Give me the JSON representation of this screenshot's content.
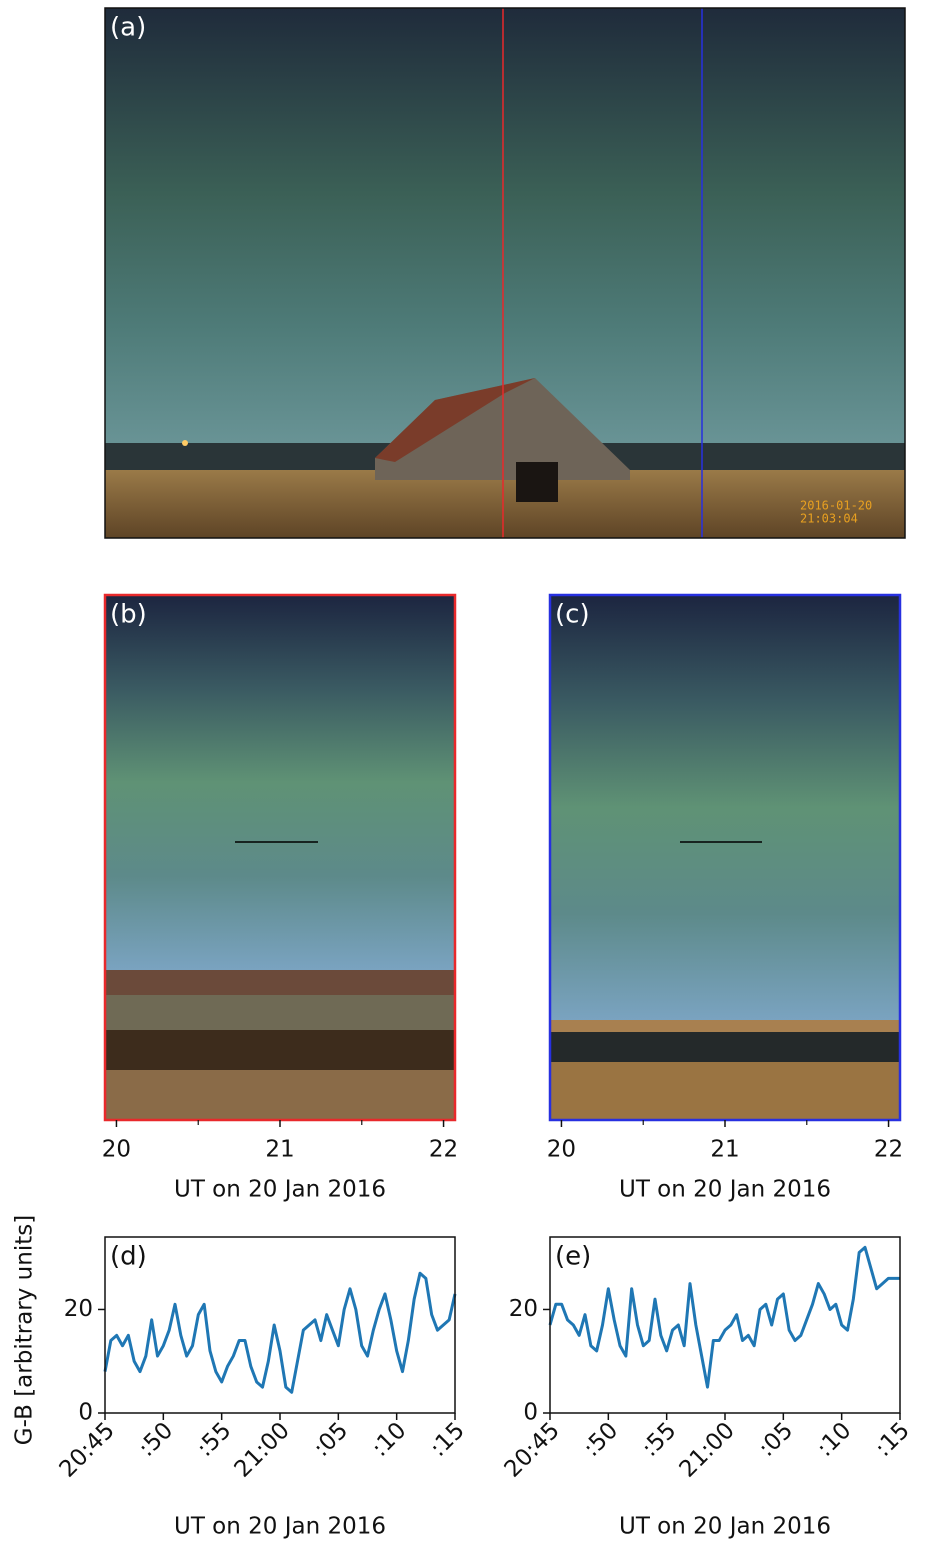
{
  "chart_data": [
    {
      "type": "image",
      "label": "(a)",
      "timestamp": [
        "2016-01-20",
        "21:03:04"
      ]
    },
    {
      "type": "keogram",
      "label": "(b)",
      "xlabel": "UT on 20 Jan 2016",
      "xlim": [
        19.93,
        22.07
      ],
      "xticks": [
        20,
        21,
        22
      ],
      "minor_xticks": [
        20.5,
        21.5
      ]
    },
    {
      "type": "keogram",
      "label": "(c)",
      "xlabel": "UT on 20 Jan 2016",
      "xlim": [
        19.93,
        22.07
      ],
      "xticks": [
        20,
        21,
        22
      ],
      "minor_xticks": [
        20.5,
        21.5
      ]
    },
    {
      "type": "line",
      "label": "(d)",
      "xlabel": "UT on 20 Jan 2016",
      "ylabel": "G-B [arbitrary units]",
      "xlim": [
        45,
        75
      ],
      "xticks": [
        {
          "value": 45,
          "label": "20:45"
        },
        {
          "value": 50,
          "label": ":50"
        },
        {
          "value": 55,
          "label": ":55"
        },
        {
          "value": 60,
          "label": "21:00"
        },
        {
          "value": 65,
          "label": ":05"
        },
        {
          "value": 70,
          "label": ":10"
        },
        {
          "value": 75,
          "label": ":15"
        }
      ],
      "ylim": [
        0,
        34
      ],
      "yticks": [
        0,
        20
      ],
      "x": [
        45,
        45.5,
        46,
        46.5,
        47,
        47.5,
        48,
        48.5,
        49,
        49.5,
        50,
        50.5,
        51,
        51.5,
        52,
        52.5,
        53,
        53.5,
        54,
        54.5,
        55,
        55.5,
        56,
        56.5,
        57,
        57.5,
        58,
        58.5,
        59,
        59.5,
        60,
        60.5,
        61,
        61.5,
        62,
        62.5,
        63,
        63.5,
        64,
        64.5,
        65,
        65.5,
        66,
        66.5,
        67,
        67.5,
        68,
        68.5,
        69,
        69.5,
        70,
        70.5,
        71,
        71.5,
        72,
        72.5,
        73,
        73.5,
        74,
        74.5,
        75
      ],
      "series": [
        {
          "color": "#1f77b4",
          "values": [
            8,
            14,
            15,
            13,
            15,
            10,
            8,
            11,
            18,
            11,
            13,
            16,
            21,
            15,
            11,
            13,
            19,
            21,
            12,
            8,
            6,
            9,
            11,
            14,
            14,
            9,
            6,
            5,
            10,
            17,
            12,
            5,
            4,
            10,
            16,
            17,
            18,
            14,
            19,
            16,
            13,
            20,
            24,
            20,
            13,
            11,
            16,
            20,
            23,
            18,
            12,
            8,
            14,
            22,
            27,
            26,
            19,
            16,
            17,
            18,
            23
          ]
        }
      ]
    },
    {
      "type": "line",
      "label": "(e)",
      "xlabel": "UT on 20 Jan 2016",
      "xlim": [
        45,
        75
      ],
      "xticks": [
        {
          "value": 45,
          "label": "20:45"
        },
        {
          "value": 50,
          "label": ":50"
        },
        {
          "value": 55,
          "label": ":55"
        },
        {
          "value": 60,
          "label": "21:00"
        },
        {
          "value": 65,
          "label": ":05"
        },
        {
          "value": 70,
          "label": ":10"
        },
        {
          "value": 75,
          "label": ":15"
        }
      ],
      "ylim": [
        0,
        34
      ],
      "yticks": [
        0,
        20
      ],
      "x": [
        45,
        45.5,
        46,
        46.5,
        47,
        47.5,
        48,
        48.5,
        49,
        49.5,
        50,
        50.5,
        51,
        51.5,
        52,
        52.5,
        53,
        53.5,
        54,
        54.5,
        55,
        55.5,
        56,
        56.5,
        57,
        57.5,
        58,
        58.5,
        59,
        59.5,
        60,
        60.5,
        61,
        61.5,
        62,
        62.5,
        63,
        63.5,
        64,
        64.5,
        65,
        65.5,
        66,
        66.5,
        67,
        67.5,
        68,
        68.5,
        69,
        69.5,
        70,
        70.5,
        71,
        71.5,
        72,
        72.5,
        73,
        73.5,
        74,
        74.5,
        75
      ],
      "series": [
        {
          "color": "#1f77b4",
          "values": [
            17,
            21,
            21,
            18,
            17,
            15,
            19,
            13,
            12,
            17,
            24,
            18,
            13,
            11,
            24,
            17,
            13,
            14,
            22,
            15,
            12,
            16,
            17,
            13,
            25,
            17,
            11,
            5,
            14,
            14,
            16,
            17,
            19,
            14,
            15,
            13,
            20,
            21,
            17,
            22,
            23,
            16,
            14,
            15,
            18,
            21,
            25,
            23,
            20,
            21,
            17,
            16,
            22,
            31,
            32,
            28,
            24,
            25,
            26,
            26,
            26
          ]
        }
      ]
    }
  ]
}
